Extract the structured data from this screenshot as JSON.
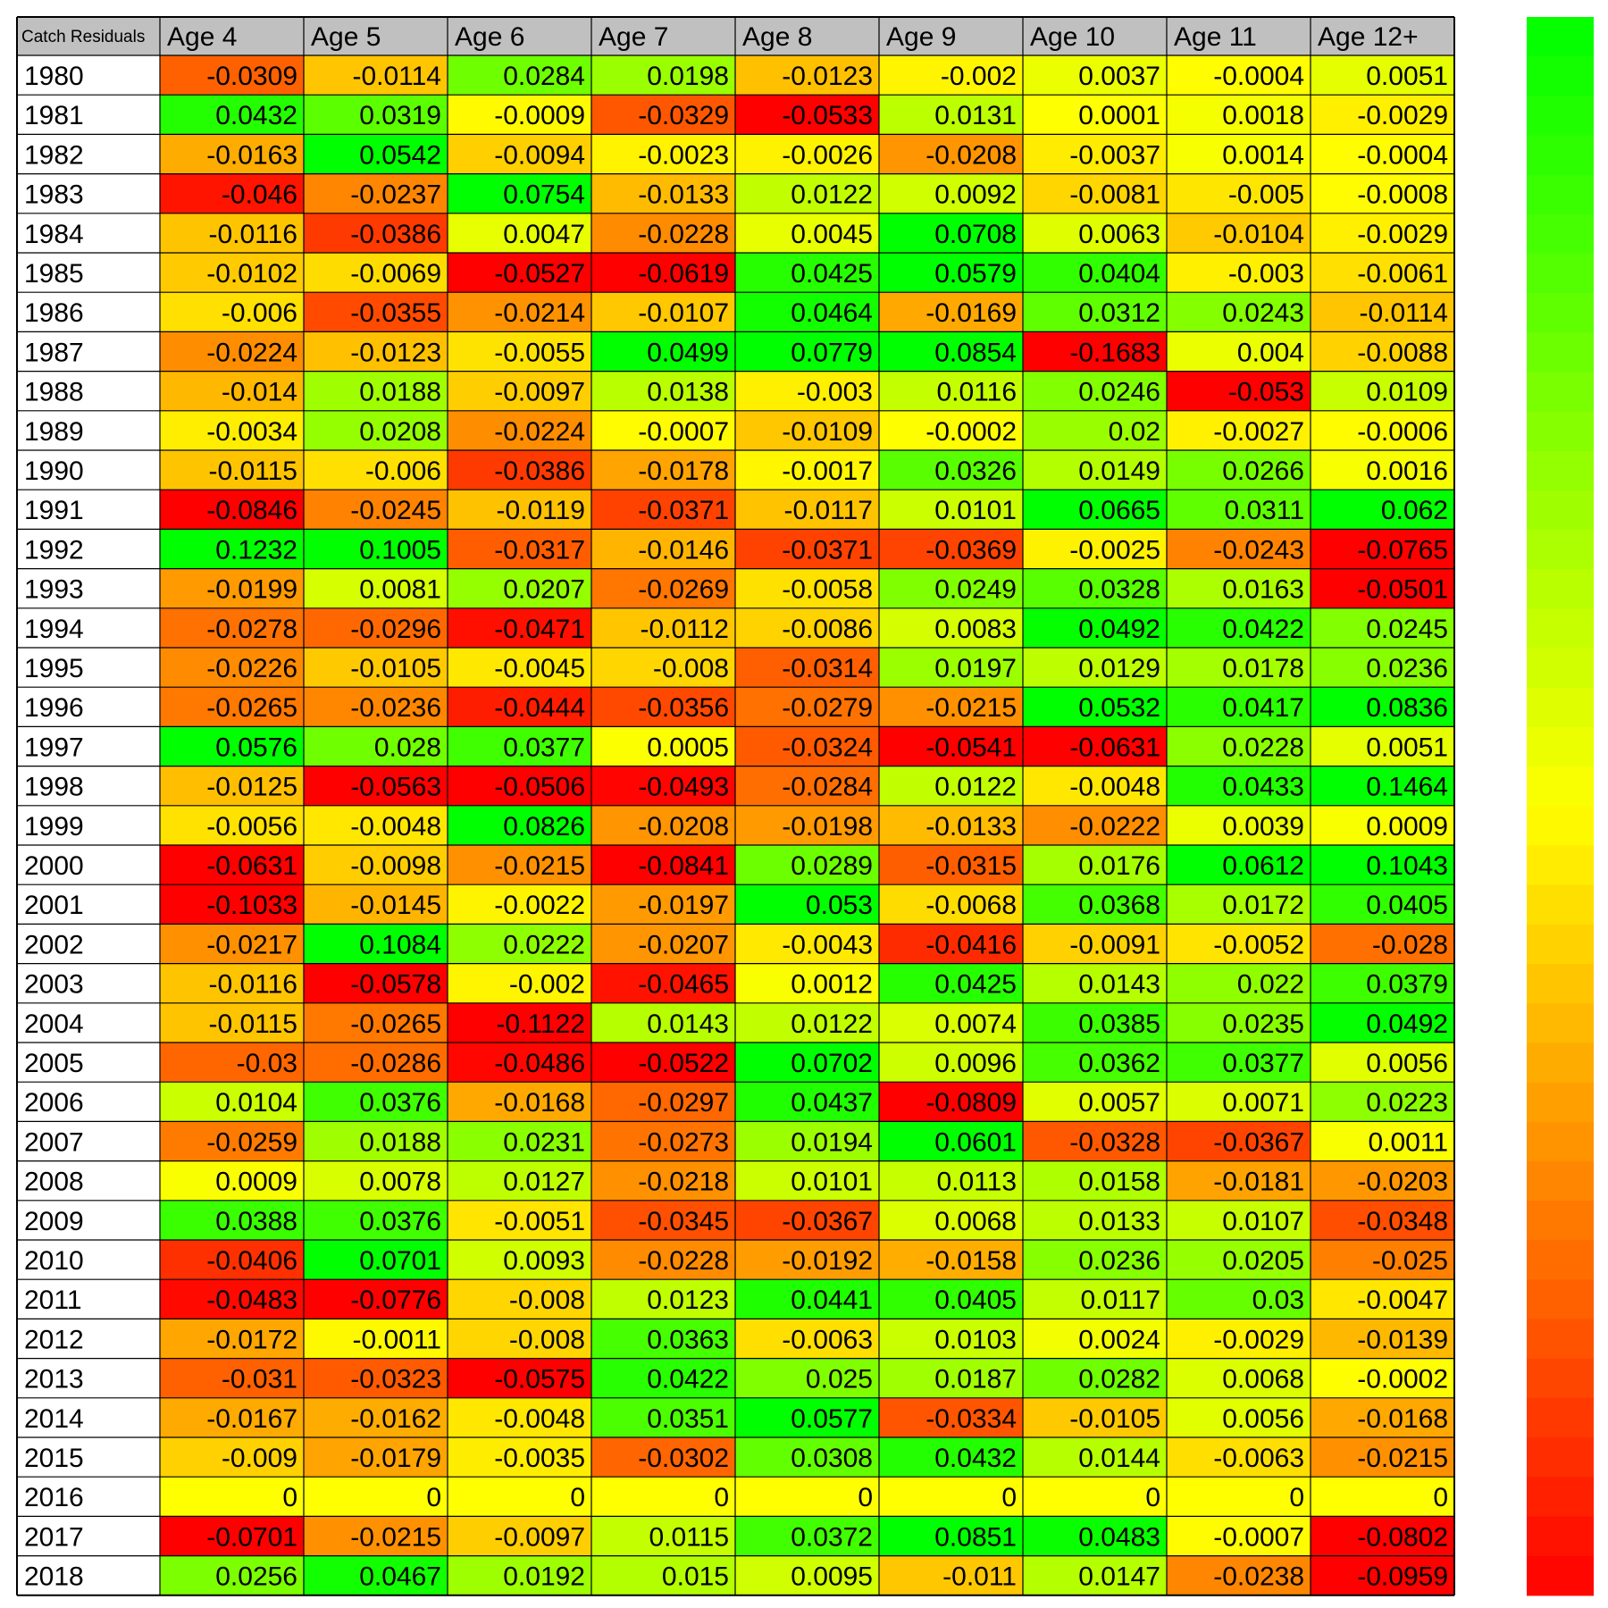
{
  "chart_data": {
    "type": "heatmap",
    "corner_label": "Catch Residuals",
    "columns": [
      "Age 4",
      "Age 5",
      "Age 6",
      "Age 7",
      "Age 8",
      "Age 9",
      "Age 10",
      "Age 11",
      "Age 12+"
    ],
    "rows": [
      "1980",
      "1981",
      "1982",
      "1983",
      "1984",
      "1985",
      "1986",
      "1987",
      "1988",
      "1989",
      "1990",
      "1991",
      "1992",
      "1993",
      "1994",
      "1995",
      "1996",
      "1997",
      "1998",
      "1999",
      "2000",
      "2001",
      "2002",
      "2003",
      "2004",
      "2005",
      "2006",
      "2007",
      "2008",
      "2009",
      "2010",
      "2011",
      "2012",
      "2013",
      "2014",
      "2015",
      "2016",
      "2017",
      "2018"
    ],
    "values": [
      [
        "-0.0309",
        "-0.0114",
        "0.0284",
        "0.0198",
        "-0.0123",
        "-0.002",
        "0.0037",
        "-0.0004",
        "0.0051"
      ],
      [
        "0.0432",
        "0.0319",
        "-0.0009",
        "-0.0329",
        "-0.0533",
        "0.0131",
        "0.0001",
        "0.0018",
        "-0.0029"
      ],
      [
        "-0.0163",
        "0.0542",
        "-0.0094",
        "-0.0023",
        "-0.0026",
        "-0.0208",
        "-0.0037",
        "0.0014",
        "-0.0004"
      ],
      [
        "-0.046",
        "-0.0237",
        "0.0754",
        "-0.0133",
        "0.0122",
        "0.0092",
        "-0.0081",
        "-0.005",
        "-0.0008"
      ],
      [
        "-0.0116",
        "-0.0386",
        "0.0047",
        "-0.0228",
        "0.0045",
        "0.0708",
        "0.0063",
        "-0.0104",
        "-0.0029"
      ],
      [
        "-0.0102",
        "-0.0069",
        "-0.0527",
        "-0.0619",
        "0.0425",
        "0.0579",
        "0.0404",
        "-0.003",
        "-0.0061"
      ],
      [
        "-0.006",
        "-0.0355",
        "-0.0214",
        "-0.0107",
        "0.0464",
        "-0.0169",
        "0.0312",
        "0.0243",
        "-0.0114"
      ],
      [
        "-0.0224",
        "-0.0123",
        "-0.0055",
        "0.0499",
        "0.0779",
        "0.0854",
        "-0.1683",
        "0.004",
        "-0.0088"
      ],
      [
        "-0.014",
        "0.0188",
        "-0.0097",
        "0.0138",
        "-0.003",
        "0.0116",
        "0.0246",
        "-0.053",
        "0.0109"
      ],
      [
        "-0.0034",
        "0.0208",
        "-0.0224",
        "-0.0007",
        "-0.0109",
        "-0.0002",
        "0.02",
        "-0.0027",
        "-0.0006"
      ],
      [
        "-0.0115",
        "-0.006",
        "-0.0386",
        "-0.0178",
        "-0.0017",
        "0.0326",
        "0.0149",
        "0.0266",
        "0.0016"
      ],
      [
        "-0.0846",
        "-0.0245",
        "-0.0119",
        "-0.0371",
        "-0.0117",
        "0.0101",
        "0.0665",
        "0.0311",
        "0.062"
      ],
      [
        "0.1232",
        "0.1005",
        "-0.0317",
        "-0.0146",
        "-0.0371",
        "-0.0369",
        "-0.0025",
        "-0.0243",
        "-0.0765"
      ],
      [
        "-0.0199",
        "0.0081",
        "0.0207",
        "-0.0269",
        "-0.0058",
        "0.0249",
        "0.0328",
        "0.0163",
        "-0.0501"
      ],
      [
        "-0.0278",
        "-0.0296",
        "-0.0471",
        "-0.0112",
        "-0.0086",
        "0.0083",
        "0.0492",
        "0.0422",
        "0.0245"
      ],
      [
        "-0.0226",
        "-0.0105",
        "-0.0045",
        "-0.008",
        "-0.0314",
        "0.0197",
        "0.0129",
        "0.0178",
        "0.0236"
      ],
      [
        "-0.0265",
        "-0.0236",
        "-0.0444",
        "-0.0356",
        "-0.0279",
        "-0.0215",
        "0.0532",
        "0.0417",
        "0.0836"
      ],
      [
        "0.0576",
        "0.028",
        "0.0377",
        "0.0005",
        "-0.0324",
        "-0.0541",
        "-0.0631",
        "0.0228",
        "0.0051"
      ],
      [
        "-0.0125",
        "-0.0563",
        "-0.0506",
        "-0.0493",
        "-0.0284",
        "0.0122",
        "-0.0048",
        "0.0433",
        "0.1464"
      ],
      [
        "-0.0056",
        "-0.0048",
        "0.0826",
        "-0.0208",
        "-0.0198",
        "-0.0133",
        "-0.0222",
        "0.0039",
        "0.0009"
      ],
      [
        "-0.0631",
        "-0.0098",
        "-0.0215",
        "-0.0841",
        "0.0289",
        "-0.0315",
        "0.0176",
        "0.0612",
        "0.1043"
      ],
      [
        "-0.1033",
        "-0.0145",
        "-0.0022",
        "-0.0197",
        "0.053",
        "-0.0068",
        "0.0368",
        "0.0172",
        "0.0405"
      ],
      [
        "-0.0217",
        "0.1084",
        "0.0222",
        "-0.0207",
        "-0.0043",
        "-0.0416",
        "-0.0091",
        "-0.0052",
        "-0.028"
      ],
      [
        "-0.0116",
        "-0.0578",
        "-0.002",
        "-0.0465",
        "0.0012",
        "0.0425",
        "0.0143",
        "0.022",
        "0.0379"
      ],
      [
        "-0.0115",
        "-0.0265",
        "-0.1122",
        "0.0143",
        "0.0122",
        "0.0074",
        "0.0385",
        "0.0235",
        "0.0492"
      ],
      [
        "-0.03",
        "-0.0286",
        "-0.0486",
        "-0.0522",
        "0.0702",
        "0.0096",
        "0.0362",
        "0.0377",
        "0.0056"
      ],
      [
        "0.0104",
        "0.0376",
        "-0.0168",
        "-0.0297",
        "0.0437",
        "-0.0809",
        "0.0057",
        "0.0071",
        "0.0223"
      ],
      [
        "-0.0259",
        "0.0188",
        "0.0231",
        "-0.0273",
        "0.0194",
        "0.0601",
        "-0.0328",
        "-0.0367",
        "0.0011"
      ],
      [
        "0.0009",
        "0.0078",
        "0.0127",
        "-0.0218",
        "0.0101",
        "0.0113",
        "0.0158",
        "-0.0181",
        "-0.0203"
      ],
      [
        "0.0388",
        "0.0376",
        "-0.0051",
        "-0.0345",
        "-0.0367",
        "0.0068",
        "0.0133",
        "0.0107",
        "-0.0348"
      ],
      [
        "-0.0406",
        "0.0701",
        "0.0093",
        "-0.0228",
        "-0.0192",
        "-0.0158",
        "0.0236",
        "0.0205",
        "-0.025"
      ],
      [
        "-0.0483",
        "-0.0776",
        "-0.008",
        "0.0123",
        "0.0441",
        "0.0405",
        "0.0117",
        "0.03",
        "-0.0047"
      ],
      [
        "-0.0172",
        "-0.0011",
        "-0.008",
        "0.0363",
        "-0.0063",
        "0.0103",
        "0.0024",
        "-0.0029",
        "-0.0139"
      ],
      [
        "-0.031",
        "-0.0323",
        "-0.0575",
        "0.0422",
        "0.025",
        "0.0187",
        "0.0282",
        "0.0068",
        "-0.0002"
      ],
      [
        "-0.0167",
        "-0.0162",
        "-0.0048",
        "0.0351",
        "0.0577",
        "-0.0334",
        "-0.0105",
        "0.0056",
        "-0.0168"
      ],
      [
        "-0.009",
        "-0.0179",
        "-0.0035",
        "-0.0302",
        "0.0308",
        "0.0432",
        "0.0144",
        "-0.0063",
        "-0.0215"
      ],
      [
        "0",
        "0",
        "0",
        "0",
        "0",
        "0",
        "0",
        "0",
        "0"
      ],
      [
        "-0.0701",
        "-0.0215",
        "-0.0097",
        "0.0115",
        "0.0372",
        "0.0851",
        "0.0483",
        "-0.0007",
        "-0.0802"
      ],
      [
        "0.0256",
        "0.0467",
        "0.0192",
        "0.015",
        "0.0095",
        "-0.011",
        "0.0147",
        "-0.0238",
        "-0.0959"
      ]
    ],
    "color_scale": {
      "domain": [
        -0.05,
        0,
        0.05
      ],
      "colors": [
        "#ff0000",
        "#ffff00",
        "#00ff00"
      ],
      "legend_bar": "right, green at top, red at bottom"
    },
    "colors": {
      "header_fill": "#c0c0c0",
      "row_label_fill": "#ffffff",
      "grid_line": "#000000"
    }
  }
}
